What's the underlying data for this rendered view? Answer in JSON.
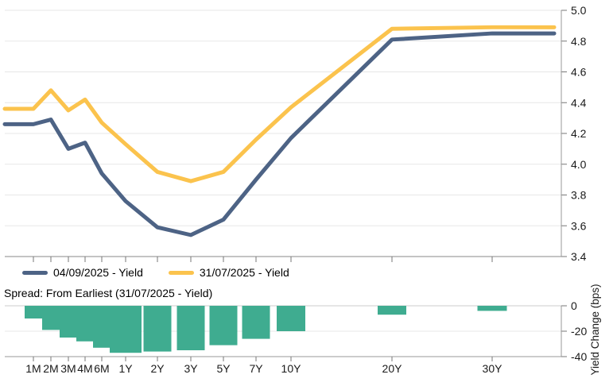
{
  "chart_data": {
    "type": "line+bar",
    "title": "",
    "categories": [
      "1M",
      "2M",
      "3M",
      "4M",
      "6M",
      "1Y",
      "2Y",
      "3Y",
      "5Y",
      "7Y",
      "10Y",
      "20Y",
      "30Y"
    ],
    "panels": [
      {
        "type": "line",
        "name": "yield-curves",
        "series": [
          {
            "name": "04/09/2025 - Yield",
            "color": "#4D6385",
            "values": [
              4.26,
              4.29,
              4.1,
              4.14,
              3.94,
              3.76,
              3.59,
              3.54,
              3.64,
              3.9,
              4.17,
              4.81,
              4.85
            ]
          },
          {
            "name": "31/07/2025 - Yield",
            "color": "#FBC34D",
            "values": [
              4.36,
              4.48,
              4.35,
              4.42,
              4.27,
              4.13,
              3.95,
              3.89,
              3.95,
              4.16,
              4.37,
              4.88,
              4.89
            ]
          }
        ],
        "ylim": [
          3.4,
          5.0
        ],
        "yticks": [
          5.0,
          4.8,
          4.6,
          4.4,
          4.2,
          4.0,
          3.8,
          3.6,
          3.4
        ],
        "yaxis_side": "right",
        "grid": true
      },
      {
        "type": "bar",
        "name": "spread",
        "title": "Spread: From Earliest (31/07/2025 - Yield)",
        "ylabel": "Yield Change (bps)",
        "color": "#3FAC90",
        "values": [
          -10,
          -19,
          -25,
          -28,
          -33,
          -37,
          -36,
          -35,
          -31,
          -26,
          -20,
          -7,
          -4
        ],
        "ylim": [
          -40,
          0
        ],
        "yticks": [
          0,
          -20,
          -40
        ],
        "yaxis_side": "right",
        "grid": true
      }
    ],
    "legend_position": "bottom-left"
  },
  "colors": {
    "grid": "#e7e7e7",
    "axis": "#999999",
    "axis_dark": "#888888",
    "tick": "#777777",
    "text": "#1a1a1a",
    "zero_line": "#cccccc"
  }
}
